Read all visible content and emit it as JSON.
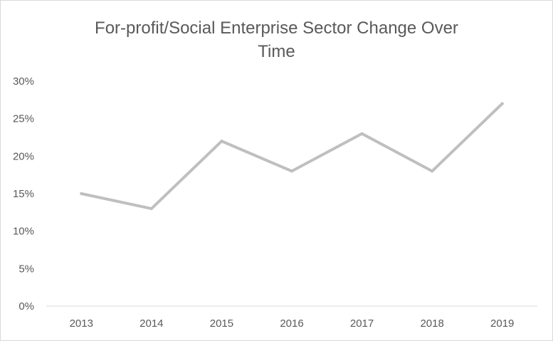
{
  "chart_data": {
    "type": "line",
    "title_lines": [
      "For-profit/Social Enterprise Sector Change Over",
      "Time"
    ],
    "categories": [
      "2013",
      "2014",
      "2015",
      "2016",
      "2017",
      "2018",
      "2019"
    ],
    "series": [
      {
        "values": [
          15,
          13,
          22,
          18,
          23,
          18,
          27
        ],
        "color": "#bfbfbf"
      }
    ],
    "y_ticks": [
      "0%",
      "5%",
      "10%",
      "15%",
      "20%",
      "25%",
      "30%"
    ],
    "ylim": [
      0,
      30
    ],
    "y_unit": "percent",
    "grid": false,
    "legend": "none"
  }
}
